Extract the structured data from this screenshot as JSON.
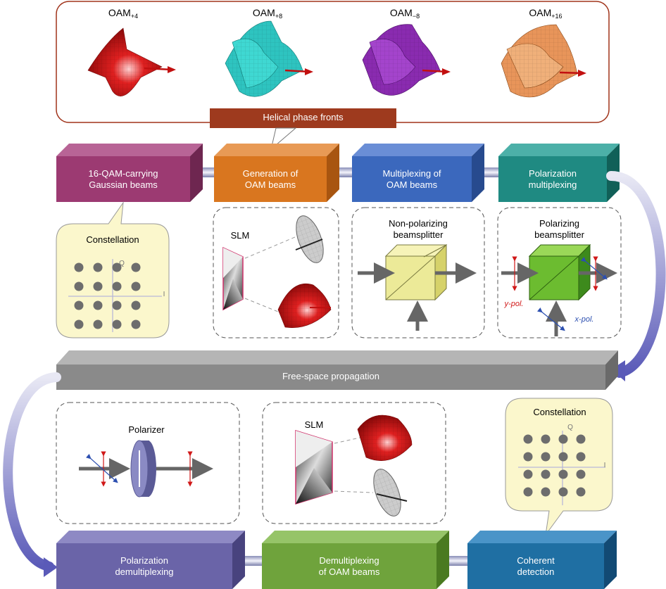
{
  "top_panel": {
    "oam": [
      {
        "base": "OAM",
        "sub": "+4",
        "color": "#e02020"
      },
      {
        "base": "OAM",
        "sub": "+8",
        "color": "#2ec4c0"
      },
      {
        "base": "OAM",
        "sub": "−8",
        "color": "#8a2bb0"
      },
      {
        "base": "OAM",
        "sub": "+16",
        "color": "#e8955a"
      }
    ],
    "banner": "Helical phase fronts"
  },
  "row1": [
    {
      "line1": "16-QAM-carrying",
      "line2": "Gaussian beams",
      "color": "#9c3a72"
    },
    {
      "line1": "Generation of",
      "line2": "OAM beams",
      "color": "#d9761f"
    },
    {
      "line1": "Multiplexing of",
      "line2": "OAM beams",
      "color": "#3b68bd"
    },
    {
      "line1": "Polarization",
      "line2": "multiplexing",
      "color": "#1f8a82"
    }
  ],
  "constellation_left": {
    "title": "Constellation",
    "axis_q": "Q",
    "axis_i": "I"
  },
  "slm_top": {
    "label": "SLM"
  },
  "npbs": {
    "line1": "Non-polarizing",
    "line2": "beamsplitter"
  },
  "pbs": {
    "line1": "Polarizing",
    "line2": "beamsplitter",
    "ypol": "y-pol.",
    "xpol": "x-pol."
  },
  "propagation": {
    "label": "Free-space propagation",
    "color": "#8a8a8a"
  },
  "polarizer": {
    "label": "Polarizer"
  },
  "slm_bottom": {
    "label": "SLM"
  },
  "constellation_right": {
    "title": "Constellation",
    "axis_q": "Q",
    "axis_i": "I"
  },
  "row3": [
    {
      "line1": "Polarization",
      "line2": "demultiplexing",
      "color": "#6a64a8"
    },
    {
      "line1": "Demultiplexing",
      "line2": "of OAM beams",
      "color": "#6fa33c"
    },
    {
      "line1": "Coherent",
      "line2": "detection",
      "color": "#1f6fa3"
    }
  ]
}
